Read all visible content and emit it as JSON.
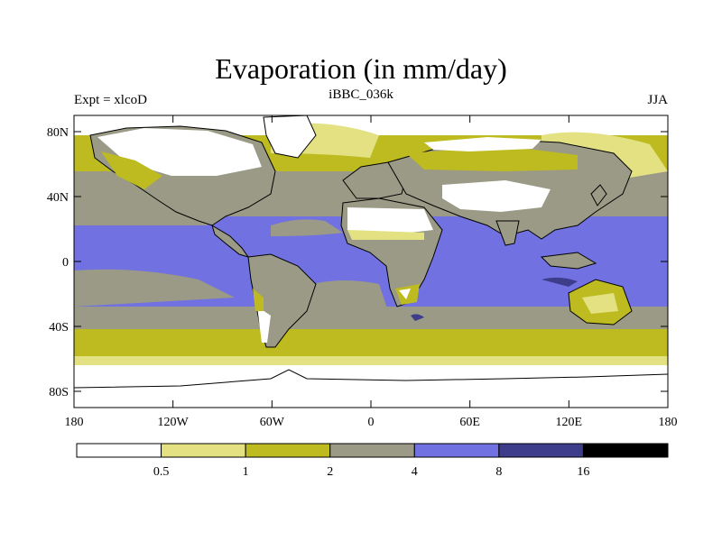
{
  "header": {
    "title": "Evaporation (in mm/day)",
    "left_string": "Expt = xlcoD",
    "center_string": "iBBC_036k",
    "right_string": "JJA"
  },
  "map": {
    "type": "filled contour map",
    "projection": "cylindrical equidistant",
    "lon_range": [
      -180,
      180
    ],
    "lat_range": [
      -90,
      90
    ],
    "lat_ticks": [
      {
        "value": 80,
        "label": "80N"
      },
      {
        "value": 40,
        "label": "40N"
      },
      {
        "value": 0,
        "label": "0"
      },
      {
        "value": -40,
        "label": "40S"
      },
      {
        "value": -80,
        "label": "80S"
      }
    ],
    "lon_ticks": [
      {
        "value": -180,
        "label": "180"
      },
      {
        "value": -120,
        "label": "120W"
      },
      {
        "value": -60,
        "label": "60W"
      },
      {
        "value": 0,
        "label": "0"
      },
      {
        "value": 60,
        "label": "60E"
      },
      {
        "value": 120,
        "label": "120E"
      },
      {
        "value": 180,
        "label": "180"
      }
    ]
  },
  "legend": {
    "levels": [
      "0.5",
      "1",
      "2",
      "4",
      "8",
      "16"
    ],
    "colors": [
      "#ffffff",
      "#e3e181",
      "#bdbb1f",
      "#9a9a86",
      "#7171e1",
      "#3d3d8c",
      "#000000"
    ]
  }
}
